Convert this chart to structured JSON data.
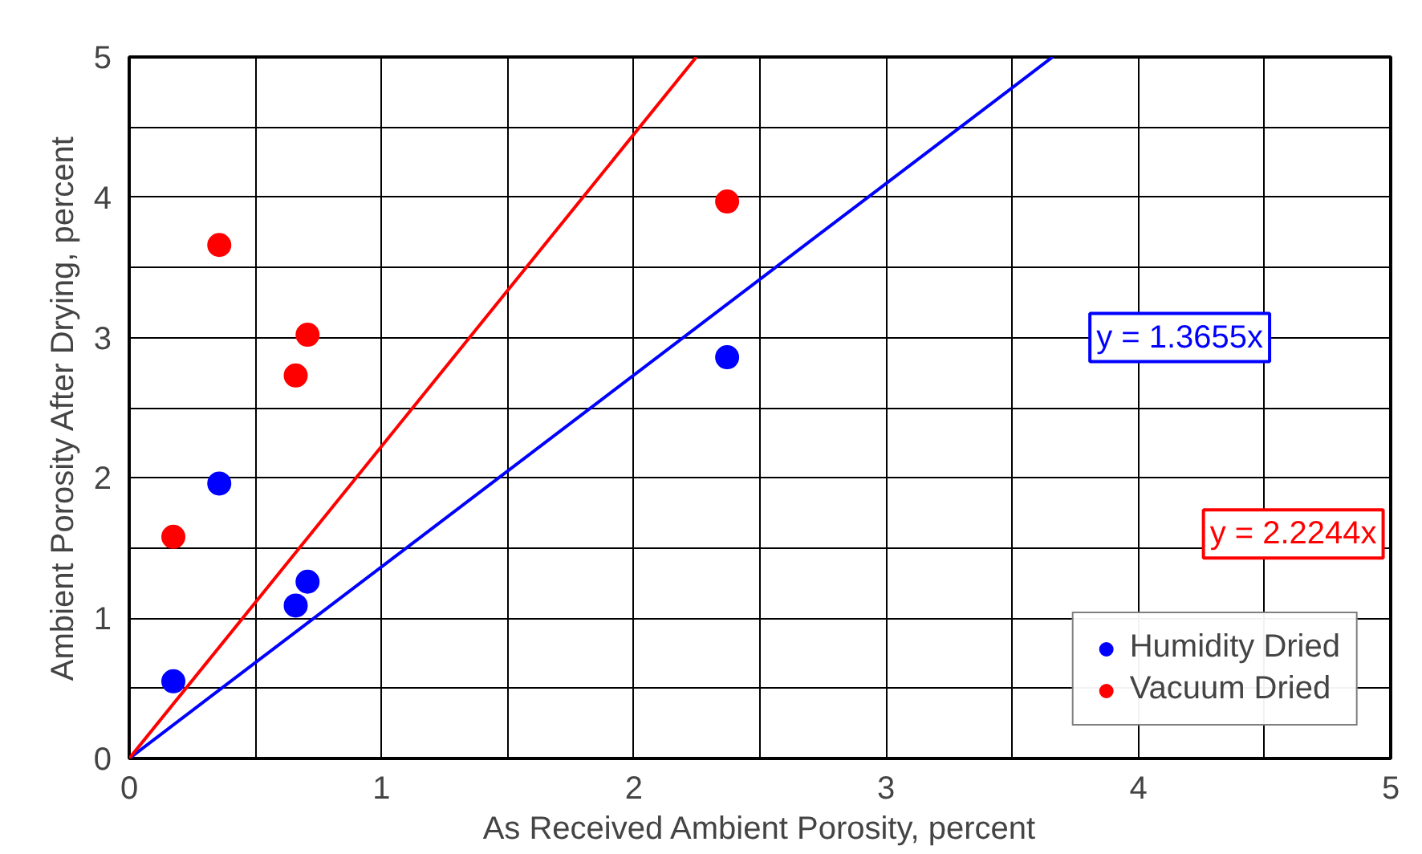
{
  "chart_data": {
    "type": "scatter",
    "xlabel": "As Received Ambient Porosity, percent",
    "ylabel": "Ambient Porosity After Drying, percent",
    "xlim": [
      0,
      5
    ],
    "ylim": [
      0,
      5
    ],
    "xticks": [
      0,
      1,
      2,
      3,
      4,
      5
    ],
    "yticks": [
      0,
      1,
      2,
      3,
      4,
      5
    ],
    "grid": true,
    "legend": "bottom right",
    "series": [
      {
        "name": "Humidity Dried",
        "color": "#0000ff",
        "x": [
          0.175,
          0.357,
          0.66,
          0.707,
          2.37
        ],
        "values": [
          0.55,
          1.96,
          1.09,
          1.26,
          2.86
        ],
        "marker": "circle"
      },
      {
        "name": "Vacuum Dried",
        "color": "#ff0000",
        "x": [
          0.175,
          0.357,
          0.66,
          0.707,
          2.37
        ],
        "values": [
          1.58,
          3.66,
          2.73,
          3.02,
          3.97
        ],
        "marker": "circle"
      },
      {
        "name": "y = 1.3655x",
        "type": "line",
        "color": "#0000ff",
        "x": [
          0,
          3.66
        ],
        "values": [
          0,
          5
        ],
        "marker": "none"
      },
      {
        "name": "y = 2.2244x",
        "type": "line",
        "color": "#ff0000",
        "x": [
          0,
          2.248
        ],
        "values": [
          0,
          5
        ],
        "marker": "none"
      }
    ]
  }
}
